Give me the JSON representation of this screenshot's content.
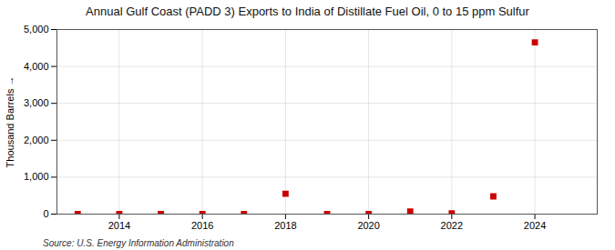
{
  "chart_data": {
    "type": "scatter",
    "title": "Annual Gulf Coast (PADD 3) Exports to India of Distillate Fuel Oil, 0 to 15 ppm Sulfur",
    "ylabel": "Thousand Barrels",
    "source": "Source: U.S. Energy Information Administration",
    "x": [
      2013,
      2014,
      2015,
      2016,
      2017,
      2018,
      2019,
      2020,
      2021,
      2022,
      2023,
      2024
    ],
    "values": [
      1,
      1,
      1,
      2,
      2,
      550,
      5,
      3,
      70,
      20,
      480,
      4650
    ],
    "color": "#cc0000",
    "marker": "square",
    "xlim": [
      2012.5,
      2025.5
    ],
    "xticks": [
      2014,
      2016,
      2018,
      2020,
      2022,
      2024
    ],
    "ylim": [
      0,
      5000
    ],
    "yticks": [
      0,
      {
        "value": 1000,
        "label": "1,000"
      },
      {
        "value": 2000,
        "label": "2,000"
      },
      {
        "value": 3000,
        "label": "3,000"
      },
      {
        "value": 4000,
        "label": "4,000"
      },
      {
        "value": 5000,
        "label": "5,000"
      }
    ],
    "grid": true
  }
}
